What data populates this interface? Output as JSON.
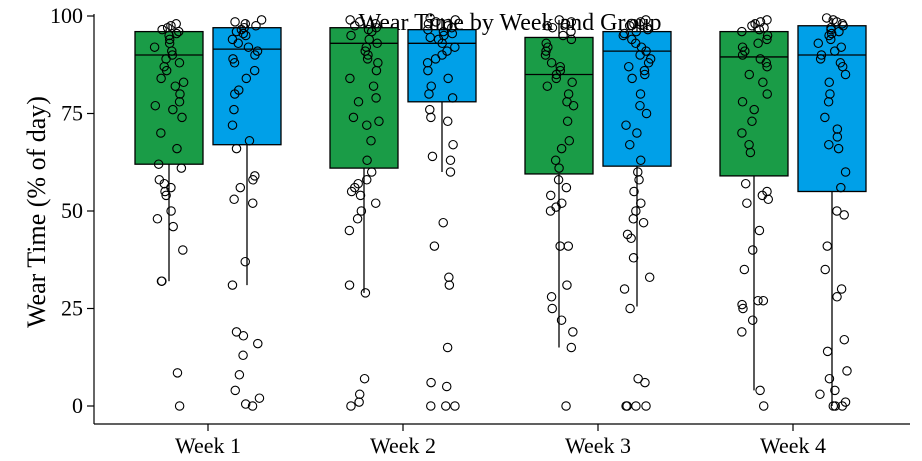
{
  "chart_data": {
    "type": "box",
    "title": "Wear Time by Week and Group",
    "xlabel": "",
    "ylabel": "Wear Time (% of day)",
    "ylim": [
      0,
      100
    ],
    "yticks": [
      0,
      25,
      50,
      75,
      100
    ],
    "categories": [
      "Week 1",
      "Week 2",
      "Week 3",
      "Week 4"
    ],
    "grid": false,
    "legend": "none",
    "series": [
      {
        "color": "#1a9c47",
        "boxes": [
          {
            "q1": 62,
            "median": 90,
            "q3": 96,
            "whisker_low": 32,
            "whisker_high": 98,
            "points": [
              98,
              97.5,
              97,
              96.5,
              96,
              95.5,
              95,
              94,
              93,
              92,
              91,
              90,
              89,
              88,
              87,
              86,
              84,
              83,
              82,
              80,
              78,
              77,
              76,
              74,
              70,
              66,
              62,
              61,
              58,
              57,
              56,
              55,
              54,
              50,
              48,
              46,
              40,
              32,
              32,
              8.5,
              0
            ]
          },
          {
            "q1": 61,
            "median": 93,
            "q3": 97,
            "whisker_low": 29,
            "whisker_high": 99,
            "points": [
              99,
              98.5,
              98,
              97.5,
              97,
              96.5,
              96,
              95,
              94,
              93,
              92,
              91,
              90,
              89,
              88,
              86,
              84,
              82,
              79,
              78,
              74,
              73,
              72,
              68,
              63,
              60,
              58,
              57,
              56,
              55,
              54,
              52,
              50,
              48,
              45,
              31,
              29,
              7,
              3,
              1,
              0
            ]
          },
          {
            "q1": 59.5,
            "median": 85,
            "q3": 94.5,
            "whisker_low": 15,
            "whisker_high": 99,
            "points": [
              99,
              98.5,
              98,
              97.5,
              97,
              96,
              95,
              94,
              93,
              92,
              91,
              90,
              88,
              87,
              86,
              85,
              84,
              83,
              82,
              80,
              78,
              77,
              73,
              68,
              66,
              63,
              61,
              58,
              56,
              54,
              52,
              51,
              50,
              41,
              41,
              31,
              28,
              25,
              22,
              19,
              15,
              0
            ]
          },
          {
            "q1": 59,
            "median": 89.5,
            "q3": 96,
            "whisker_low": 4,
            "whisker_high": 99,
            "points": [
              99,
              98.5,
              98,
              97.5,
              97,
              96.5,
              96,
              95,
              94,
              93,
              92,
              91,
              90,
              89,
              88,
              87,
              85,
              83,
              80,
              78,
              76,
              73,
              70,
              67,
              65,
              57,
              55,
              54,
              53,
              52,
              45,
              40,
              35,
              27,
              27,
              26,
              25,
              22,
              19,
              4,
              0
            ]
          }
        ]
      },
      {
        "color": "#00a0e8",
        "boxes": [
          {
            "q1": 67,
            "median": 91.5,
            "q3": 97,
            "whisker_low": 31,
            "whisker_high": 99,
            "points": [
              99,
              98.5,
              98,
              97.5,
              97,
              96.5,
              96,
              95.5,
              95,
              94,
              93,
              92,
              91,
              90,
              89,
              88,
              86,
              84,
              81,
              80,
              76,
              72,
              68,
              66,
              59,
              58,
              56,
              53,
              52,
              37,
              31,
              19,
              18,
              16,
              13,
              8,
              4,
              2,
              0.5,
              0
            ]
          },
          {
            "q1": 78,
            "median": 93,
            "q3": 96.5,
            "whisker_low": 60,
            "whisker_high": 99.5,
            "points": [
              99.5,
              99,
              98.5,
              98,
              97.5,
              97,
              96.5,
              96,
              95.5,
              95,
              94.5,
              94,
              93,
              92,
              91,
              90,
              89,
              88,
              86,
              84,
              82,
              80,
              79,
              76,
              74,
              73,
              67,
              64,
              63,
              60,
              47,
              41,
              33,
              31,
              15,
              6,
              5,
              0,
              0,
              0
            ]
          },
          {
            "q1": 61.5,
            "median": 91,
            "q3": 96,
            "whisker_low": 25.5,
            "whisker_high": 99,
            "points": [
              99,
              98.5,
              98,
              97.5,
              97,
              96.5,
              96,
              95.5,
              95,
              94,
              93,
              92,
              91,
              90,
              89,
              88,
              87,
              86,
              85,
              84,
              80,
              77,
              75,
              72,
              70,
              67,
              63,
              60,
              58,
              55,
              52,
              50,
              48,
              47,
              44,
              43,
              38,
              33,
              30,
              25,
              7,
              6,
              0,
              0,
              0,
              0
            ]
          },
          {
            "q1": 55,
            "median": 90,
            "q3": 97.5,
            "whisker_low": 0,
            "whisker_high": 99.5,
            "points": [
              99.5,
              99,
              98.5,
              98,
              97.5,
              97,
              96.5,
              96,
              95.5,
              95,
              94,
              93,
              92,
              91,
              90,
              89,
              88,
              87,
              85,
              83,
              80,
              78,
              74,
              71,
              69,
              67,
              66,
              60,
              56,
              50,
              49,
              41,
              35,
              30,
              28,
              17,
              14,
              9,
              7,
              4,
              3,
              1,
              0,
              0,
              0
            ]
          }
        ]
      }
    ]
  }
}
